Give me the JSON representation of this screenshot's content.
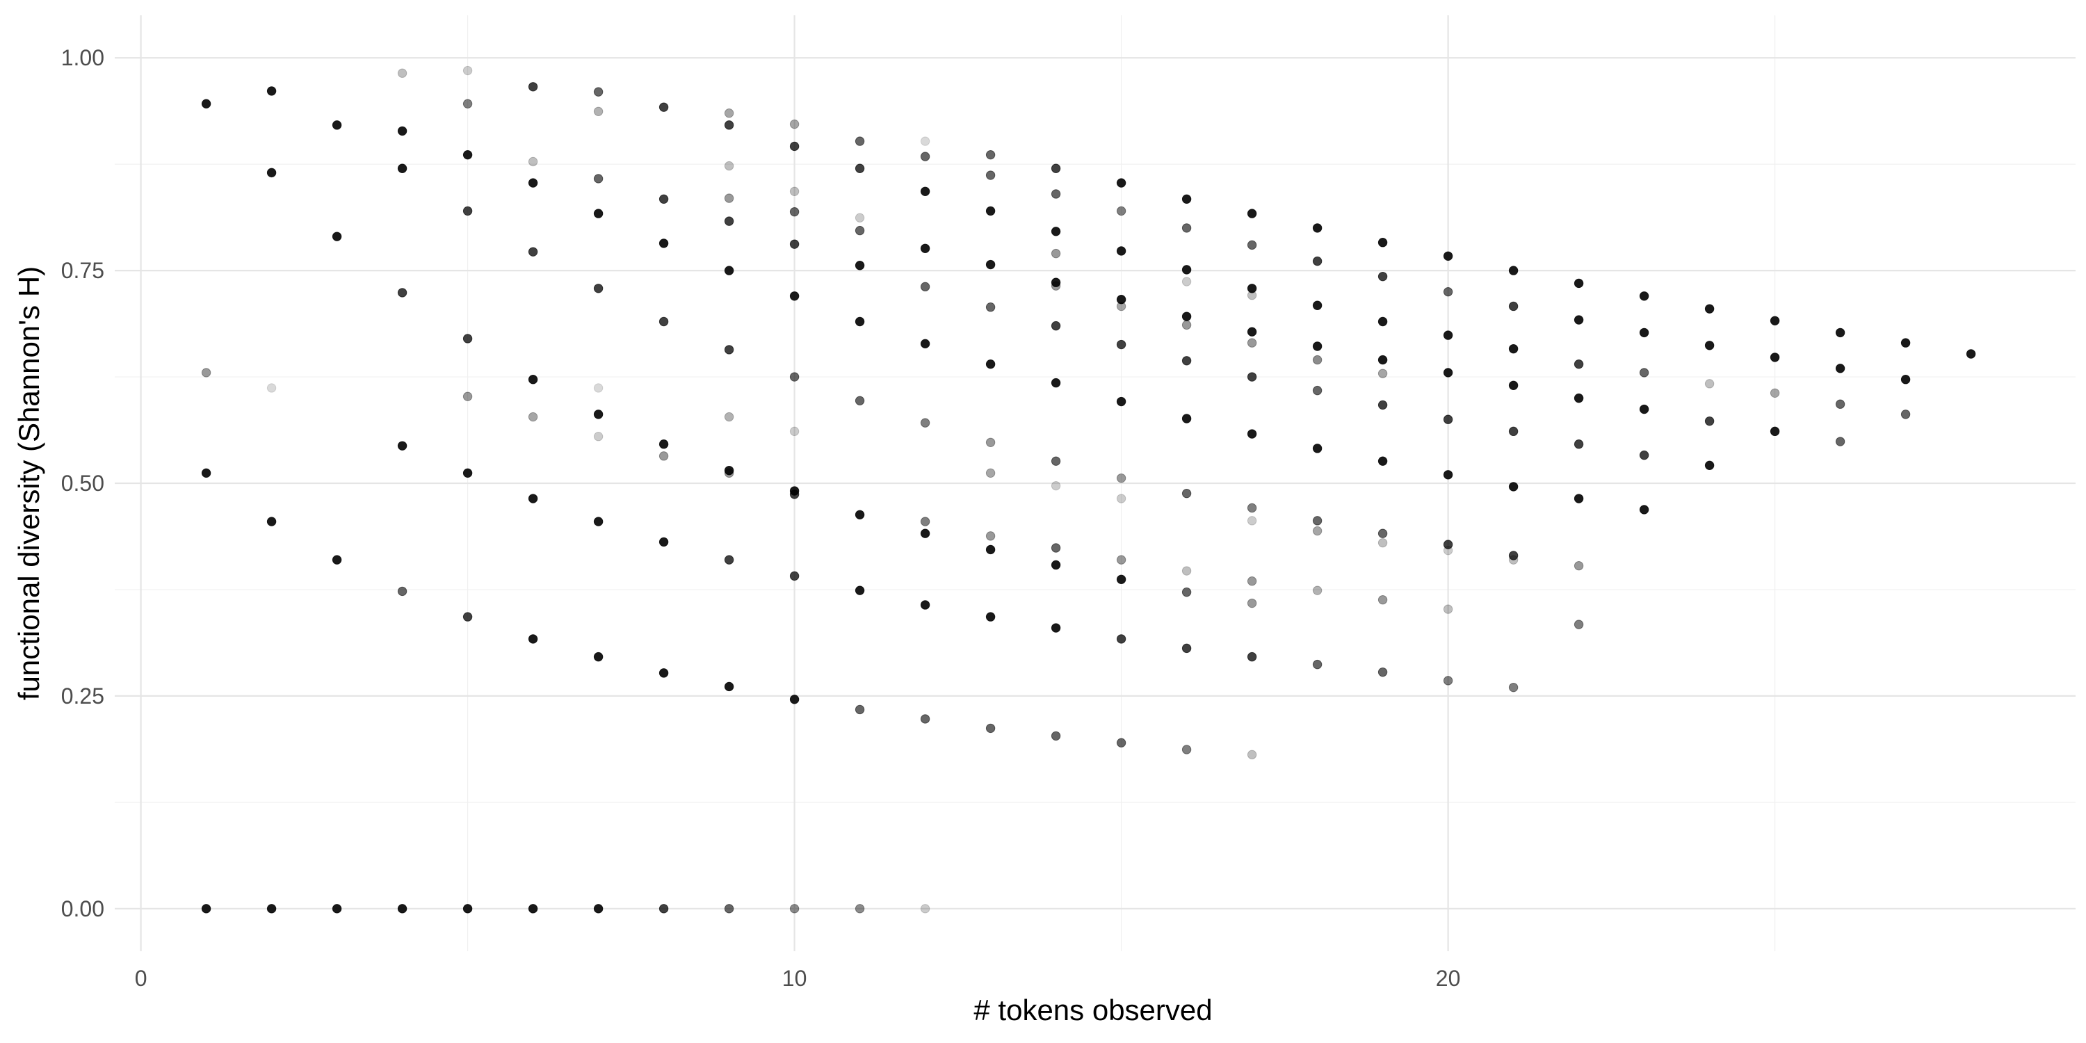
{
  "chart_data": {
    "type": "scatter",
    "title": "",
    "xlabel": "# tokens observed",
    "ylabel": "functional diversity (Shannon's H)",
    "xlim": [
      -0.4,
      29.6
    ],
    "ylim": [
      -0.05,
      1.05
    ],
    "x_ticks": [
      0,
      10,
      20
    ],
    "x_tick_labels": [
      "0",
      "10",
      "20"
    ],
    "y_ticks": [
      0,
      0.25,
      0.5,
      0.75,
      1.0
    ],
    "y_tick_labels": [
      "0.00",
      "0.25",
      "0.50",
      "0.75",
      "1.00"
    ],
    "grid": true,
    "legend": "none",
    "point_color": "#000000",
    "points_note_opacity": "alpha encodes point overlap in the original",
    "points": [
      {
        "x": 1,
        "y": 0.946,
        "a": 0.9
      },
      {
        "x": 1,
        "y": 0.63,
        "a": 0.4
      },
      {
        "x": 1,
        "y": 0.512,
        "a": 0.9
      },
      {
        "x": 1,
        "y": 0.0,
        "a": 0.9
      },
      {
        "x": 2,
        "y": 0.961,
        "a": 0.9
      },
      {
        "x": 2,
        "y": 0.865,
        "a": 0.9
      },
      {
        "x": 2,
        "y": 0.612,
        "a": 0.15
      },
      {
        "x": 2,
        "y": 0.455,
        "a": 0.9
      },
      {
        "x": 2,
        "y": 0.0,
        "a": 0.9
      },
      {
        "x": 3,
        "y": 0.921,
        "a": 0.9
      },
      {
        "x": 3,
        "y": 0.79,
        "a": 0.9
      },
      {
        "x": 3,
        "y": 0.41,
        "a": 0.9
      },
      {
        "x": 3,
        "y": 0.0,
        "a": 0.9
      },
      {
        "x": 4,
        "y": 0.982,
        "a": 0.25
      },
      {
        "x": 4,
        "y": 0.914,
        "a": 0.9
      },
      {
        "x": 4,
        "y": 0.87,
        "a": 0.9
      },
      {
        "x": 4,
        "y": 0.724,
        "a": 0.75
      },
      {
        "x": 4,
        "y": 0.544,
        "a": 0.9
      },
      {
        "x": 4,
        "y": 0.373,
        "a": 0.6
      },
      {
        "x": 4,
        "y": 0.0,
        "a": 0.9
      },
      {
        "x": 5,
        "y": 0.985,
        "a": 0.2
      },
      {
        "x": 5,
        "y": 0.946,
        "a": 0.5
      },
      {
        "x": 5,
        "y": 0.886,
        "a": 0.9
      },
      {
        "x": 5,
        "y": 0.82,
        "a": 0.75
      },
      {
        "x": 5,
        "y": 0.67,
        "a": 0.75
      },
      {
        "x": 5,
        "y": 0.602,
        "a": 0.4
      },
      {
        "x": 5,
        "y": 0.512,
        "a": 0.9
      },
      {
        "x": 5,
        "y": 0.343,
        "a": 0.75
      },
      {
        "x": 5,
        "y": 0.0,
        "a": 0.9
      },
      {
        "x": 6,
        "y": 0.966,
        "a": 0.75
      },
      {
        "x": 6,
        "y": 0.878,
        "a": 0.25
      },
      {
        "x": 6,
        "y": 0.853,
        "a": 0.9
      },
      {
        "x": 6,
        "y": 0.772,
        "a": 0.75
      },
      {
        "x": 6,
        "y": 0.622,
        "a": 0.9
      },
      {
        "x": 6,
        "y": 0.578,
        "a": 0.35
      },
      {
        "x": 6,
        "y": 0.482,
        "a": 0.9
      },
      {
        "x": 6,
        "y": 0.317,
        "a": 0.9
      },
      {
        "x": 6,
        "y": 0.0,
        "a": 0.9
      },
      {
        "x": 7,
        "y": 0.96,
        "a": 0.6
      },
      {
        "x": 7,
        "y": 0.937,
        "a": 0.3
      },
      {
        "x": 7,
        "y": 0.858,
        "a": 0.6
      },
      {
        "x": 7,
        "y": 0.817,
        "a": 0.9
      },
      {
        "x": 7,
        "y": 0.729,
        "a": 0.75
      },
      {
        "x": 7,
        "y": 0.612,
        "a": 0.15
      },
      {
        "x": 7,
        "y": 0.581,
        "a": 0.9
      },
      {
        "x": 7,
        "y": 0.555,
        "a": 0.2
      },
      {
        "x": 7,
        "y": 0.455,
        "a": 0.9
      },
      {
        "x": 7,
        "y": 0.296,
        "a": 0.9
      },
      {
        "x": 7,
        "y": 0.0,
        "a": 0.9
      },
      {
        "x": 8,
        "y": 0.942,
        "a": 0.75
      },
      {
        "x": 8,
        "y": 0.834,
        "a": 0.75
      },
      {
        "x": 8,
        "y": 0.782,
        "a": 0.9
      },
      {
        "x": 8,
        "y": 0.69,
        "a": 0.75
      },
      {
        "x": 8,
        "y": 0.546,
        "a": 0.9
      },
      {
        "x": 8,
        "y": 0.532,
        "a": 0.4
      },
      {
        "x": 8,
        "y": 0.431,
        "a": 0.9
      },
      {
        "x": 8,
        "y": 0.277,
        "a": 0.9
      },
      {
        "x": 8,
        "y": 0.0,
        "a": 0.75
      },
      {
        "x": 9,
        "y": 0.935,
        "a": 0.35
      },
      {
        "x": 9,
        "y": 0.921,
        "a": 0.75
      },
      {
        "x": 9,
        "y": 0.873,
        "a": 0.25
      },
      {
        "x": 9,
        "y": 0.835,
        "a": 0.4
      },
      {
        "x": 9,
        "y": 0.808,
        "a": 0.75
      },
      {
        "x": 9,
        "y": 0.75,
        "a": 0.9
      },
      {
        "x": 9,
        "y": 0.657,
        "a": 0.75
      },
      {
        "x": 9,
        "y": 0.578,
        "a": 0.3
      },
      {
        "x": 9,
        "y": 0.515,
        "a": 0.9
      },
      {
        "x": 9,
        "y": 0.512,
        "a": 0.4
      },
      {
        "x": 9,
        "y": 0.41,
        "a": 0.75
      },
      {
        "x": 9,
        "y": 0.261,
        "a": 0.9
      },
      {
        "x": 9,
        "y": 0.0,
        "a": 0.6
      },
      {
        "x": 10,
        "y": 0.922,
        "a": 0.35
      },
      {
        "x": 10,
        "y": 0.896,
        "a": 0.75
      },
      {
        "x": 10,
        "y": 0.843,
        "a": 0.25
      },
      {
        "x": 10,
        "y": 0.819,
        "a": 0.6
      },
      {
        "x": 10,
        "y": 0.781,
        "a": 0.75
      },
      {
        "x": 10,
        "y": 0.72,
        "a": 0.9
      },
      {
        "x": 10,
        "y": 0.625,
        "a": 0.6
      },
      {
        "x": 10,
        "y": 0.561,
        "a": 0.2
      },
      {
        "x": 10,
        "y": 0.491,
        "a": 0.9
      },
      {
        "x": 10,
        "y": 0.487,
        "a": 0.75
      },
      {
        "x": 10,
        "y": 0.391,
        "a": 0.75
      },
      {
        "x": 10,
        "y": 0.246,
        "a": 0.9
      },
      {
        "x": 10,
        "y": 0.0,
        "a": 0.45
      },
      {
        "x": 11,
        "y": 0.902,
        "a": 0.6
      },
      {
        "x": 11,
        "y": 0.87,
        "a": 0.75
      },
      {
        "x": 11,
        "y": 0.812,
        "a": 0.2
      },
      {
        "x": 11,
        "y": 0.797,
        "a": 0.6
      },
      {
        "x": 11,
        "y": 0.756,
        "a": 0.9
      },
      {
        "x": 11,
        "y": 0.69,
        "a": 0.9
      },
      {
        "x": 11,
        "y": 0.597,
        "a": 0.6
      },
      {
        "x": 11,
        "y": 0.463,
        "a": 0.9
      },
      {
        "x": 11,
        "y": 0.374,
        "a": 0.9
      },
      {
        "x": 11,
        "y": 0.234,
        "a": 0.6
      },
      {
        "x": 11,
        "y": 0.0,
        "a": 0.45
      },
      {
        "x": 12,
        "y": 0.902,
        "a": 0.15
      },
      {
        "x": 12,
        "y": 0.884,
        "a": 0.6
      },
      {
        "x": 12,
        "y": 0.843,
        "a": 0.9
      },
      {
        "x": 12,
        "y": 0.776,
        "a": 0.9
      },
      {
        "x": 12,
        "y": 0.731,
        "a": 0.6
      },
      {
        "x": 12,
        "y": 0.664,
        "a": 0.9
      },
      {
        "x": 12,
        "y": 0.571,
        "a": 0.5
      },
      {
        "x": 12,
        "y": 0.455,
        "a": 0.5
      },
      {
        "x": 12,
        "y": 0.441,
        "a": 0.9
      },
      {
        "x": 12,
        "y": 0.357,
        "a": 0.9
      },
      {
        "x": 12,
        "y": 0.223,
        "a": 0.6
      },
      {
        "x": 12,
        "y": 0.0,
        "a": 0.2
      },
      {
        "x": 13,
        "y": 0.886,
        "a": 0.6
      },
      {
        "x": 13,
        "y": 0.862,
        "a": 0.6
      },
      {
        "x": 13,
        "y": 0.82,
        "a": 0.9
      },
      {
        "x": 13,
        "y": 0.757,
        "a": 0.9
      },
      {
        "x": 13,
        "y": 0.707,
        "a": 0.6
      },
      {
        "x": 13,
        "y": 0.64,
        "a": 0.9
      },
      {
        "x": 13,
        "y": 0.548,
        "a": 0.4
      },
      {
        "x": 13,
        "y": 0.512,
        "a": 0.35
      },
      {
        "x": 13,
        "y": 0.438,
        "a": 0.4
      },
      {
        "x": 13,
        "y": 0.422,
        "a": 0.9
      },
      {
        "x": 13,
        "y": 0.343,
        "a": 0.9
      },
      {
        "x": 13,
        "y": 0.212,
        "a": 0.6
      },
      {
        "x": 14,
        "y": 0.87,
        "a": 0.75
      },
      {
        "x": 14,
        "y": 0.84,
        "a": 0.6
      },
      {
        "x": 14,
        "y": 0.796,
        "a": 0.9
      },
      {
        "x": 14,
        "y": 0.77,
        "a": 0.4
      },
      {
        "x": 14,
        "y": 0.736,
        "a": 0.9
      },
      {
        "x": 14,
        "y": 0.732,
        "a": 0.4
      },
      {
        "x": 14,
        "y": 0.685,
        "a": 0.75
      },
      {
        "x": 14,
        "y": 0.618,
        "a": 0.9
      },
      {
        "x": 14,
        "y": 0.526,
        "a": 0.6
      },
      {
        "x": 14,
        "y": 0.497,
        "a": 0.2
      },
      {
        "x": 14,
        "y": 0.424,
        "a": 0.6
      },
      {
        "x": 14,
        "y": 0.404,
        "a": 0.9
      },
      {
        "x": 14,
        "y": 0.33,
        "a": 0.9
      },
      {
        "x": 14,
        "y": 0.203,
        "a": 0.6
      },
      {
        "x": 15,
        "y": 0.853,
        "a": 0.9
      },
      {
        "x": 15,
        "y": 0.82,
        "a": 0.5
      },
      {
        "x": 15,
        "y": 0.773,
        "a": 0.9
      },
      {
        "x": 15,
        "y": 0.716,
        "a": 0.9
      },
      {
        "x": 15,
        "y": 0.708,
        "a": 0.35
      },
      {
        "x": 15,
        "y": 0.663,
        "a": 0.75
      },
      {
        "x": 15,
        "y": 0.596,
        "a": 0.9
      },
      {
        "x": 15,
        "y": 0.506,
        "a": 0.4
      },
      {
        "x": 15,
        "y": 0.482,
        "a": 0.2
      },
      {
        "x": 15,
        "y": 0.41,
        "a": 0.4
      },
      {
        "x": 15,
        "y": 0.387,
        "a": 0.9
      },
      {
        "x": 15,
        "y": 0.317,
        "a": 0.75
      },
      {
        "x": 15,
        "y": 0.195,
        "a": 0.6
      },
      {
        "x": 16,
        "y": 0.834,
        "a": 0.9
      },
      {
        "x": 16,
        "y": 0.8,
        "a": 0.6
      },
      {
        "x": 16,
        "y": 0.751,
        "a": 0.9
      },
      {
        "x": 16,
        "y": 0.737,
        "a": 0.2
      },
      {
        "x": 16,
        "y": 0.696,
        "a": 0.9
      },
      {
        "x": 16,
        "y": 0.686,
        "a": 0.4
      },
      {
        "x": 16,
        "y": 0.644,
        "a": 0.75
      },
      {
        "x": 16,
        "y": 0.576,
        "a": 0.9
      },
      {
        "x": 16,
        "y": 0.488,
        "a": 0.6
      },
      {
        "x": 16,
        "y": 0.397,
        "a": 0.25
      },
      {
        "x": 16,
        "y": 0.372,
        "a": 0.6
      },
      {
        "x": 16,
        "y": 0.306,
        "a": 0.75
      },
      {
        "x": 16,
        "y": 0.187,
        "a": 0.5
      },
      {
        "x": 17,
        "y": 0.817,
        "a": 0.9
      },
      {
        "x": 17,
        "y": 0.78,
        "a": 0.6
      },
      {
        "x": 17,
        "y": 0.729,
        "a": 0.9
      },
      {
        "x": 17,
        "y": 0.721,
        "a": 0.25
      },
      {
        "x": 17,
        "y": 0.678,
        "a": 0.9
      },
      {
        "x": 17,
        "y": 0.665,
        "a": 0.4
      },
      {
        "x": 17,
        "y": 0.625,
        "a": 0.75
      },
      {
        "x": 17,
        "y": 0.558,
        "a": 0.9
      },
      {
        "x": 17,
        "y": 0.471,
        "a": 0.5
      },
      {
        "x": 17,
        "y": 0.456,
        "a": 0.2
      },
      {
        "x": 17,
        "y": 0.385,
        "a": 0.4
      },
      {
        "x": 17,
        "y": 0.359,
        "a": 0.4
      },
      {
        "x": 17,
        "y": 0.296,
        "a": 0.75
      },
      {
        "x": 17,
        "y": 0.181,
        "a": 0.25
      },
      {
        "x": 18,
        "y": 0.8,
        "a": 0.9
      },
      {
        "x": 18,
        "y": 0.761,
        "a": 0.75
      },
      {
        "x": 18,
        "y": 0.709,
        "a": 0.9
      },
      {
        "x": 18,
        "y": 0.661,
        "a": 0.9
      },
      {
        "x": 18,
        "y": 0.645,
        "a": 0.45
      },
      {
        "x": 18,
        "y": 0.609,
        "a": 0.6
      },
      {
        "x": 18,
        "y": 0.541,
        "a": 0.9
      },
      {
        "x": 18,
        "y": 0.456,
        "a": 0.6
      },
      {
        "x": 18,
        "y": 0.444,
        "a": 0.35
      },
      {
        "x": 18,
        "y": 0.374,
        "a": 0.3
      },
      {
        "x": 18,
        "y": 0.287,
        "a": 0.6
      },
      {
        "x": 19,
        "y": 0.783,
        "a": 0.9
      },
      {
        "x": 19,
        "y": 0.743,
        "a": 0.75
      },
      {
        "x": 19,
        "y": 0.69,
        "a": 0.9
      },
      {
        "x": 19,
        "y": 0.645,
        "a": 0.9
      },
      {
        "x": 19,
        "y": 0.629,
        "a": 0.35
      },
      {
        "x": 19,
        "y": 0.592,
        "a": 0.75
      },
      {
        "x": 19,
        "y": 0.526,
        "a": 0.9
      },
      {
        "x": 19,
        "y": 0.441,
        "a": 0.6
      },
      {
        "x": 19,
        "y": 0.43,
        "a": 0.25
      },
      {
        "x": 19,
        "y": 0.363,
        "a": 0.4
      },
      {
        "x": 19,
        "y": 0.278,
        "a": 0.6
      },
      {
        "x": 20,
        "y": 0.767,
        "a": 0.9
      },
      {
        "x": 20,
        "y": 0.725,
        "a": 0.6
      },
      {
        "x": 20,
        "y": 0.674,
        "a": 0.9
      },
      {
        "x": 20,
        "y": 0.63,
        "a": 0.9
      },
      {
        "x": 20,
        "y": 0.575,
        "a": 0.75
      },
      {
        "x": 20,
        "y": 0.51,
        "a": 0.9
      },
      {
        "x": 20,
        "y": 0.428,
        "a": 0.75
      },
      {
        "x": 20,
        "y": 0.421,
        "a": 0.2
      },
      {
        "x": 20,
        "y": 0.352,
        "a": 0.25
      },
      {
        "x": 20,
        "y": 0.268,
        "a": 0.5
      },
      {
        "x": 21,
        "y": 0.75,
        "a": 0.9
      },
      {
        "x": 21,
        "y": 0.708,
        "a": 0.75
      },
      {
        "x": 21,
        "y": 0.658,
        "a": 0.9
      },
      {
        "x": 21,
        "y": 0.615,
        "a": 0.9
      },
      {
        "x": 21,
        "y": 0.561,
        "a": 0.75
      },
      {
        "x": 21,
        "y": 0.496,
        "a": 0.9
      },
      {
        "x": 21,
        "y": 0.415,
        "a": 0.75
      },
      {
        "x": 21,
        "y": 0.41,
        "a": 0.25
      },
      {
        "x": 21,
        "y": 0.26,
        "a": 0.5
      },
      {
        "x": 22,
        "y": 0.735,
        "a": 0.9
      },
      {
        "x": 22,
        "y": 0.692,
        "a": 0.9
      },
      {
        "x": 22,
        "y": 0.64,
        "a": 0.75
      },
      {
        "x": 22,
        "y": 0.6,
        "a": 0.9
      },
      {
        "x": 22,
        "y": 0.546,
        "a": 0.75
      },
      {
        "x": 22,
        "y": 0.482,
        "a": 0.9
      },
      {
        "x": 22,
        "y": 0.403,
        "a": 0.4
      },
      {
        "x": 22,
        "y": 0.334,
        "a": 0.5
      },
      {
        "x": 23,
        "y": 0.72,
        "a": 0.9
      },
      {
        "x": 23,
        "y": 0.677,
        "a": 0.9
      },
      {
        "x": 23,
        "y": 0.63,
        "a": 0.6
      },
      {
        "x": 23,
        "y": 0.587,
        "a": 0.9
      },
      {
        "x": 23,
        "y": 0.533,
        "a": 0.75
      },
      {
        "x": 23,
        "y": 0.469,
        "a": 0.9
      },
      {
        "x": 24,
        "y": 0.705,
        "a": 0.9
      },
      {
        "x": 24,
        "y": 0.662,
        "a": 0.9
      },
      {
        "x": 24,
        "y": 0.617,
        "a": 0.25
      },
      {
        "x": 24,
        "y": 0.573,
        "a": 0.75
      },
      {
        "x": 24,
        "y": 0.521,
        "a": 0.9
      },
      {
        "x": 25,
        "y": 0.691,
        "a": 0.9
      },
      {
        "x": 25,
        "y": 0.648,
        "a": 0.9
      },
      {
        "x": 25,
        "y": 0.606,
        "a": 0.35
      },
      {
        "x": 25,
        "y": 0.561,
        "a": 0.9
      },
      {
        "x": 26,
        "y": 0.677,
        "a": 0.9
      },
      {
        "x": 26,
        "y": 0.635,
        "a": 0.9
      },
      {
        "x": 26,
        "y": 0.593,
        "a": 0.6
      },
      {
        "x": 26,
        "y": 0.549,
        "a": 0.6
      },
      {
        "x": 27,
        "y": 0.665,
        "a": 0.9
      },
      {
        "x": 27,
        "y": 0.622,
        "a": 0.9
      },
      {
        "x": 27,
        "y": 0.581,
        "a": 0.6
      },
      {
        "x": 28,
        "y": 0.652,
        "a": 0.9
      }
    ]
  }
}
